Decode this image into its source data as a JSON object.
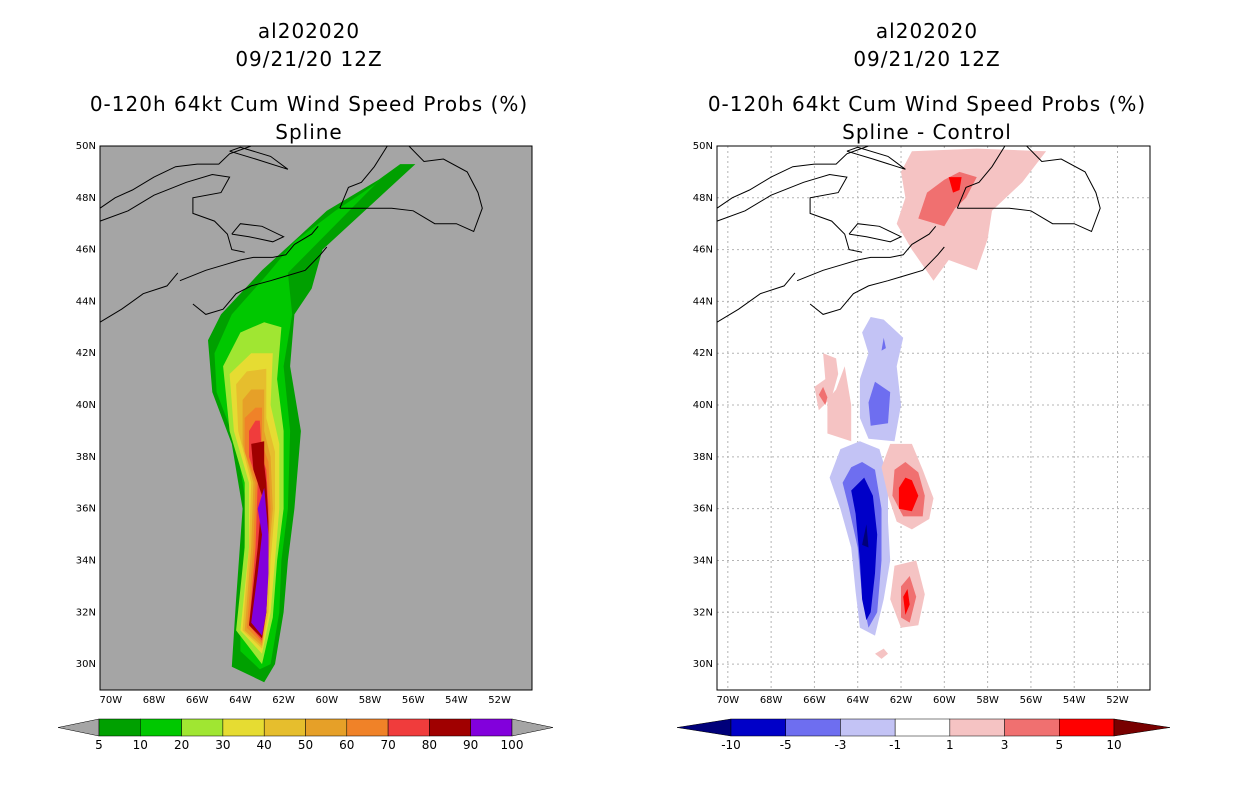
{
  "chart_data": [
    {
      "type": "heatmap",
      "title_lines": [
        "al202020",
        "09/21/20 12Z",
        "0-120h 64kt Cum Wind Speed Probs (%)",
        "Spline"
      ],
      "xlabel": "",
      "ylabel": "",
      "xlim_deg_west": [
        70.5,
        50.5
      ],
      "ylim_deg_north": [
        29.0,
        50.0
      ],
      "x_tick_labels": [
        "70W",
        "68W",
        "66W",
        "64W",
        "62W",
        "60W",
        "58W",
        "56W",
        "54W",
        "52W"
      ],
      "y_tick_labels": [
        "30N",
        "32N",
        "34N",
        "36N",
        "38N",
        "40N",
        "42N",
        "44N",
        "46N",
        "48N",
        "50N"
      ],
      "grid": false,
      "background": "#a5a5a5",
      "colorbar": {
        "labels": [
          "5",
          "10",
          "20",
          "30",
          "40",
          "50",
          "60",
          "70",
          "80",
          "90",
          "100"
        ],
        "colors": [
          "#00a000",
          "#00c800",
          "#a0e632",
          "#e6dc32",
          "#e6be2d",
          "#e6a028",
          "#f08228",
          "#f03c3c",
          "#a00000",
          "#8200dc"
        ]
      },
      "contours": [
        {
          "level": 5,
          "color": "#00a000"
        },
        {
          "level": 10,
          "color": "#00c800"
        },
        {
          "level": 20,
          "color": "#a0e632"
        },
        {
          "level": 30,
          "color": "#e6dc32"
        },
        {
          "level": 40,
          "color": "#e6be2d"
        },
        {
          "level": 50,
          "color": "#e6a028"
        },
        {
          "level": 60,
          "color": "#f08228"
        },
        {
          "level": 70,
          "color": "#f03c3c"
        },
        {
          "level": 80,
          "color": "#a00000"
        },
        {
          "level": 90,
          "color": "#8200dc"
        }
      ]
    },
    {
      "type": "heatmap",
      "title_lines": [
        "al202020",
        "09/21/20 12Z",
        "0-120h 64kt Cum Wind Speed Probs (%)",
        "Spline - Control"
      ],
      "xlabel": "",
      "ylabel": "",
      "xlim_deg_west": [
        70.5,
        50.5
      ],
      "ylim_deg_north": [
        29.0,
        50.0
      ],
      "x_tick_labels": [
        "70W",
        "68W",
        "66W",
        "64W",
        "62W",
        "60W",
        "58W",
        "56W",
        "54W",
        "52W"
      ],
      "y_tick_labels": [
        "30N",
        "32N",
        "34N",
        "36N",
        "38N",
        "40N",
        "42N",
        "44N",
        "46N",
        "48N",
        "50N"
      ],
      "grid": true,
      "background": "#ffffff",
      "colorbar": {
        "labels": [
          "-10",
          "-5",
          "-3",
          "-1",
          "1",
          "3",
          "5",
          "10"
        ],
        "colors": [
          "#0000c8",
          "#6e6ef0",
          "#c3c3f5",
          "#ffffff",
          "#f5c3c3",
          "#f07070",
          "#ff0000"
        ],
        "arrow_low": "#00007a",
        "arrow_high": "#780000"
      }
    }
  ]
}
